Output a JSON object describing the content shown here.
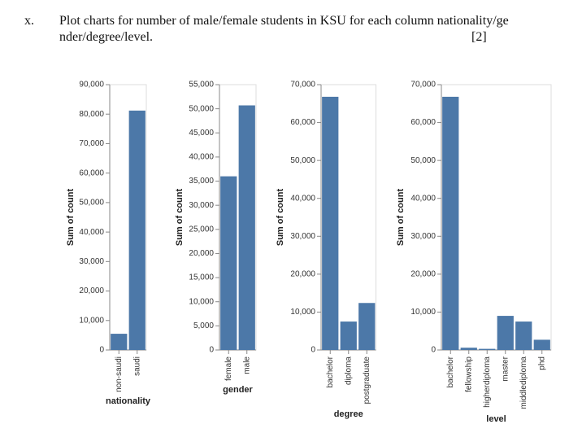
{
  "question": {
    "number": "x.",
    "line1": "Plot charts for number of male/female students in KSU for each column nationality/ge",
    "line2": "nder/degree/level.",
    "marks": "[2]"
  },
  "chart_data": [
    {
      "type": "bar",
      "x_label": "nationality",
      "y_label": "Sum of count",
      "categories": [
        "non-saudi",
        "saudi"
      ],
      "values": [
        5500,
        81200
      ],
      "color": "#4c78a8",
      "ylim": [
        0,
        90000
      ],
      "yticks": [
        0,
        {
          "value": 10000,
          "label": "10,000"
        },
        {
          "value": 20000,
          "label": "20,000"
        },
        {
          "value": 30000,
          "label": "30,000"
        },
        {
          "value": 40000,
          "label": "40,000"
        },
        {
          "value": 50000,
          "label": "50,000"
        },
        {
          "value": 60000,
          "label": "60,000"
        },
        {
          "value": 70000,
          "label": "70,000"
        },
        {
          "value": 80000,
          "label": "80,000"
        },
        {
          "value": 90000,
          "label": "90,000"
        }
      ],
      "grid": false
    },
    {
      "type": "bar",
      "x_label": "gender",
      "y_label": "Sum of count",
      "categories": [
        "female",
        "male"
      ],
      "values": [
        36000,
        50700
      ],
      "color": "#4c78a8",
      "ylim": [
        0,
        55000
      ],
      "yticks": [
        0,
        {
          "value": 5000,
          "label": "5,000"
        },
        {
          "value": 10000,
          "label": "10,000"
        },
        {
          "value": 15000,
          "label": "15,000"
        },
        {
          "value": 20000,
          "label": "20,000"
        },
        {
          "value": 25000,
          "label": "25,000"
        },
        {
          "value": 30000,
          "label": "30,000"
        },
        {
          "value": 35000,
          "label": "35,000"
        },
        {
          "value": 40000,
          "label": "40,000"
        },
        {
          "value": 45000,
          "label": "45,000"
        },
        {
          "value": 50000,
          "label": "50,000"
        },
        {
          "value": 55000,
          "label": "55,000"
        }
      ],
      "grid": false
    },
    {
      "type": "bar",
      "x_label": "degree",
      "y_label": "Sum of count",
      "categories": [
        "bachelor",
        "diploma",
        "postgraduate"
      ],
      "values": [
        66800,
        7500,
        12400
      ],
      "color": "#4c78a8",
      "ylim": [
        0,
        70000
      ],
      "yticks": [
        0,
        {
          "value": 10000,
          "label": "10,000"
        },
        {
          "value": 20000,
          "label": "20,000"
        },
        {
          "value": 30000,
          "label": "30,000"
        },
        {
          "value": 40000,
          "label": "40,000"
        },
        {
          "value": 50000,
          "label": "50,000"
        },
        {
          "value": 60000,
          "label": "60,000"
        },
        {
          "value": 70000,
          "label": "70,000"
        }
      ],
      "grid": false
    },
    {
      "type": "bar",
      "x_label": "level",
      "y_label": "Sum of count",
      "categories": [
        "bachelor",
        "fellowship",
        "higherdiploma",
        "master",
        "middlediploma",
        "phd"
      ],
      "values": [
        66800,
        600,
        300,
        9000,
        7500,
        2700
      ],
      "color": "#4c78a8",
      "ylim": [
        0,
        70000
      ],
      "yticks": [
        0,
        {
          "value": 10000,
          "label": "10,000"
        },
        {
          "value": 20000,
          "label": "20,000"
        },
        {
          "value": 30000,
          "label": "30,000"
        },
        {
          "value": 40000,
          "label": "40,000"
        },
        {
          "value": 50000,
          "label": "50,000"
        },
        {
          "value": 60000,
          "label": "60,000"
        },
        {
          "value": 70000,
          "label": "70,000"
        }
      ],
      "grid": false
    }
  ]
}
